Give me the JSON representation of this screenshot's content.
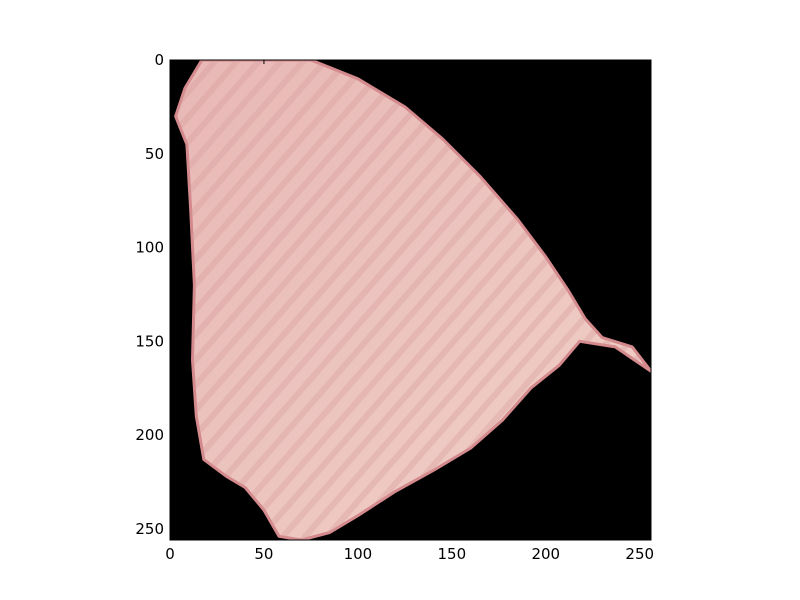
{
  "chart_data": {
    "type": "image",
    "title": "",
    "xlabel": "",
    "ylabel": "",
    "xlim": [
      0,
      256
    ],
    "ylim": [
      256,
      0
    ],
    "x_ticks": [
      0,
      50,
      100,
      150,
      200,
      250
    ],
    "y_ticks": [
      0,
      50,
      100,
      150,
      200,
      250
    ],
    "x_tick_labels": [
      "0",
      "50",
      "100",
      "150",
      "200",
      "250"
    ],
    "y_tick_labels": [
      "0",
      "50",
      "100",
      "150",
      "200",
      "250"
    ],
    "grid": false,
    "legend": "none",
    "background_color": "#000000",
    "region_color": "#e8b8b6",
    "region_highlight_color": "#f1d0c7",
    "region_edge_color": "#d4898d",
    "stripe_color": "#d49797",
    "region_outline": [
      [
        17,
        0
      ],
      [
        75,
        0
      ],
      [
        100,
        10
      ],
      [
        125,
        25
      ],
      [
        145,
        42
      ],
      [
        165,
        62
      ],
      [
        185,
        85
      ],
      [
        200,
        105
      ],
      [
        212,
        123
      ],
      [
        221,
        138
      ],
      [
        230,
        148
      ],
      [
        246,
        153
      ],
      [
        256,
        166
      ],
      [
        237,
        153
      ],
      [
        218,
        150
      ],
      [
        207,
        163
      ],
      [
        192,
        175
      ],
      [
        177,
        192
      ],
      [
        160,
        207
      ],
      [
        140,
        219
      ],
      [
        120,
        230
      ],
      [
        100,
        243
      ],
      [
        85,
        252
      ],
      [
        70,
        256
      ],
      [
        58,
        254
      ],
      [
        50,
        240
      ],
      [
        40,
        228
      ],
      [
        30,
        222
      ],
      [
        18,
        213
      ],
      [
        14,
        190
      ],
      [
        12,
        160
      ],
      [
        13,
        120
      ],
      [
        11,
        80
      ],
      [
        9,
        45
      ],
      [
        3,
        30
      ],
      [
        8,
        15
      ]
    ]
  }
}
